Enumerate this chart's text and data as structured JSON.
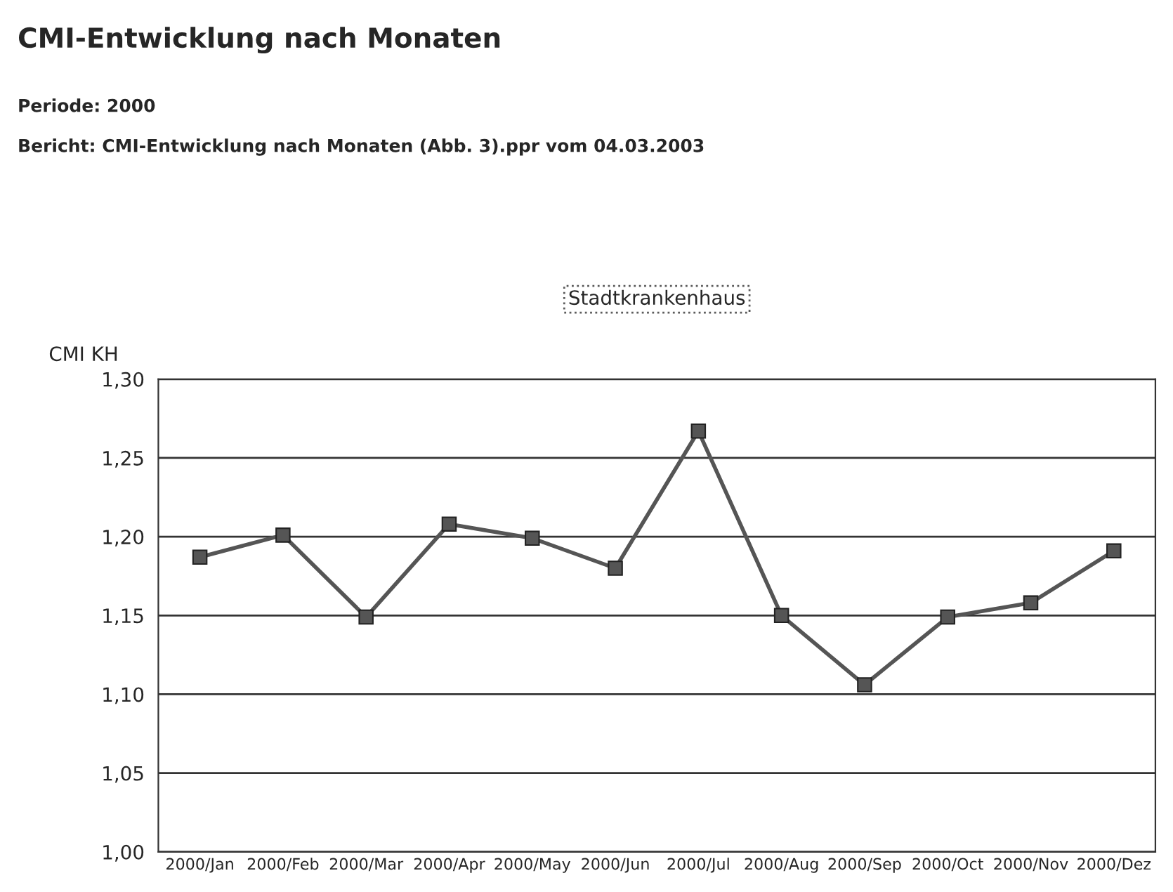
{
  "chart_data": {
    "type": "line",
    "title": "CMI-Entwicklung nach Monaten",
    "subtitle": "Periode: 2000",
    "annotations": [
      "Bericht: CMI-Entwicklung nach Monaten (Abb. 3).ppr vom 04.03.2003"
    ],
    "ylabel": "CMI KH",
    "categories": [
      "2000/Jan",
      "2000/Feb",
      "2000/Mar",
      "2000/Apr",
      "2000/May",
      "2000/Jun",
      "2000/Jul",
      "2000/Aug",
      "2000/Sep",
      "2000/Oct",
      "2000/Nov",
      "2000/Dez"
    ],
    "series": [
      {
        "name": "Stadtkrankenhaus",
        "color": "#555555",
        "values": [
          1.187,
          1.201,
          1.149,
          1.208,
          1.199,
          1.18,
          1.267,
          1.15,
          1.106,
          1.149,
          1.158,
          1.191
        ]
      }
    ],
    "ylim": [
      1.0,
      1.3
    ],
    "yticks": [
      {
        "value": 1.0,
        "label": "1,00"
      },
      {
        "value": 1.05,
        "label": "1,05"
      },
      {
        "value": 1.1,
        "label": "1,10"
      },
      {
        "value": 1.15,
        "label": "1,15"
      },
      {
        "value": 1.2,
        "label": "1,20"
      },
      {
        "value": 1.25,
        "label": "1,25"
      },
      {
        "value": 1.3,
        "label": "1,30"
      }
    ],
    "grid": "y",
    "legend": "top",
    "marker": "square",
    "line_style": "solid"
  }
}
